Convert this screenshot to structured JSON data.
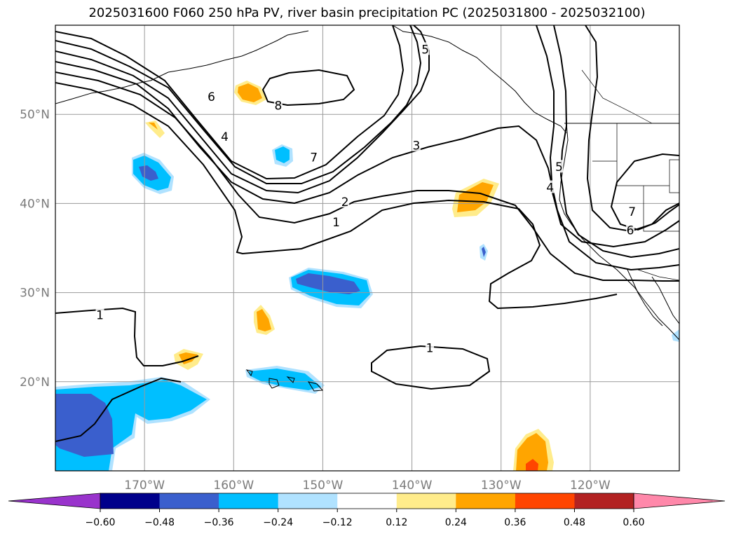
{
  "title": "2025031600 F060 250 hPa PV, river basin precipitation PC (2025031800 - 2025032100)",
  "chart_data": {
    "type": "heatmap",
    "title": "2025031600 F060 250 hPa PV, river basin precipitation PC (2025031800 - 2025032100)",
    "map": {
      "lon_range": [
        -180,
        -110
      ],
      "lat_range": [
        10,
        60
      ],
      "grid": true,
      "lat_ticks": [
        {
          "value": 20,
          "label": "20°N"
        },
        {
          "value": 30,
          "label": "30°N"
        },
        {
          "value": 40,
          "label": "40°N"
        },
        {
          "value": 50,
          "label": "50°N"
        }
      ],
      "lon_ticks": [
        {
          "value": -170,
          "label": "170°W"
        },
        {
          "value": -160,
          "label": "160°W"
        },
        {
          "value": -150,
          "label": "150°W"
        },
        {
          "value": -140,
          "label": "140°W"
        },
        {
          "value": -130,
          "label": "130°W"
        },
        {
          "value": -120,
          "label": "120°W"
        }
      ]
    },
    "colorbar": {
      "orientation": "horizontal",
      "extend": "both",
      "ticks": [
        -0.6,
        -0.48,
        -0.36,
        -0.24,
        -0.12,
        0.12,
        0.24,
        0.36,
        0.48,
        0.6
      ],
      "tick_labels": [
        "−0.60",
        "−0.48",
        "−0.36",
        "−0.24",
        "−0.12",
        "0.12",
        "0.24",
        "0.36",
        "0.48",
        "0.60"
      ],
      "colors": [
        "#9933cc",
        "#00008b",
        "#3a5fcd",
        "#00bfff",
        "#b0e2ff",
        "#ffffff",
        "#ffec8b",
        "#ffa500",
        "#ff4500",
        "#b22222",
        "#ff88aa"
      ]
    },
    "contour_labels": [
      {
        "text": "1",
        "lon": -175,
        "lat": 27.5
      },
      {
        "text": "1",
        "lon": -138,
        "lat": 23.8
      },
      {
        "text": "1",
        "lon": -148.5,
        "lat": 37.9
      },
      {
        "text": "2",
        "lon": -147.5,
        "lat": 40.2
      },
      {
        "text": "3",
        "lon": -139.5,
        "lat": 46.5
      },
      {
        "text": "7",
        "lon": -151,
        "lat": 45.2
      },
      {
        "text": "5",
        "lon": -138.5,
        "lat": 57.3
      },
      {
        "text": "6",
        "lon": -162.5,
        "lat": 52.0
      },
      {
        "text": "4",
        "lon": -161,
        "lat": 47.5
      },
      {
        "text": "8",
        "lon": -155,
        "lat": 51.0
      },
      {
        "text": "5",
        "lon": -123.5,
        "lat": 44.1
      },
      {
        "text": "4",
        "lon": -124.5,
        "lat": 41.8
      },
      {
        "text": "7",
        "lon": -115.3,
        "lat": 39.1
      },
      {
        "text": "6",
        "lon": -115.5,
        "lat": 37.0
      }
    ]
  }
}
